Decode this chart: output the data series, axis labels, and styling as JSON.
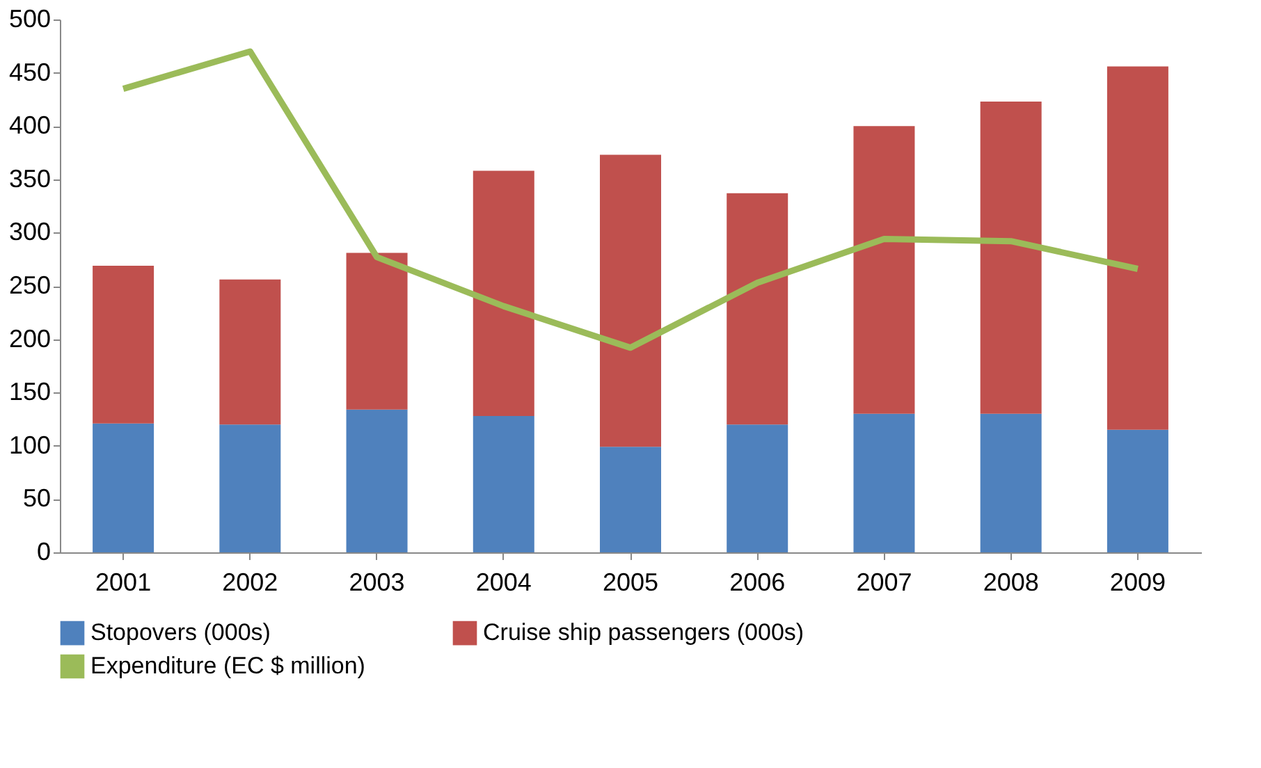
{
  "chart_data": {
    "type": "bar",
    "stacked": true,
    "categories": [
      "2001",
      "2002",
      "2003",
      "2004",
      "2005",
      "2006",
      "2007",
      "2008",
      "2009"
    ],
    "series": [
      {
        "name": "Stopovers (000s)",
        "color": "#4f81bd",
        "values": [
          121,
          120,
          134,
          128,
          99,
          120,
          130,
          130,
          115
        ]
      },
      {
        "name": "Cruise ship passengers (000s)",
        "color": "#c0504d",
        "values": [
          148,
          136,
          147,
          230,
          274,
          217,
          270,
          293,
          341
        ]
      },
      {
        "name": "Expenditure (EC $ million)",
        "color": "#9bbb59",
        "type": "line",
        "values": [
          435,
          470,
          277,
          231,
          192,
          253,
          294,
          292,
          266
        ]
      }
    ],
    "ylim": [
      0,
      500
    ],
    "yticks": [
      0,
      50,
      100,
      150,
      200,
      250,
      300,
      350,
      400,
      450,
      500
    ],
    "grid": false,
    "legend": "bottom",
    "marker": "none",
    "line_style": "solid"
  }
}
